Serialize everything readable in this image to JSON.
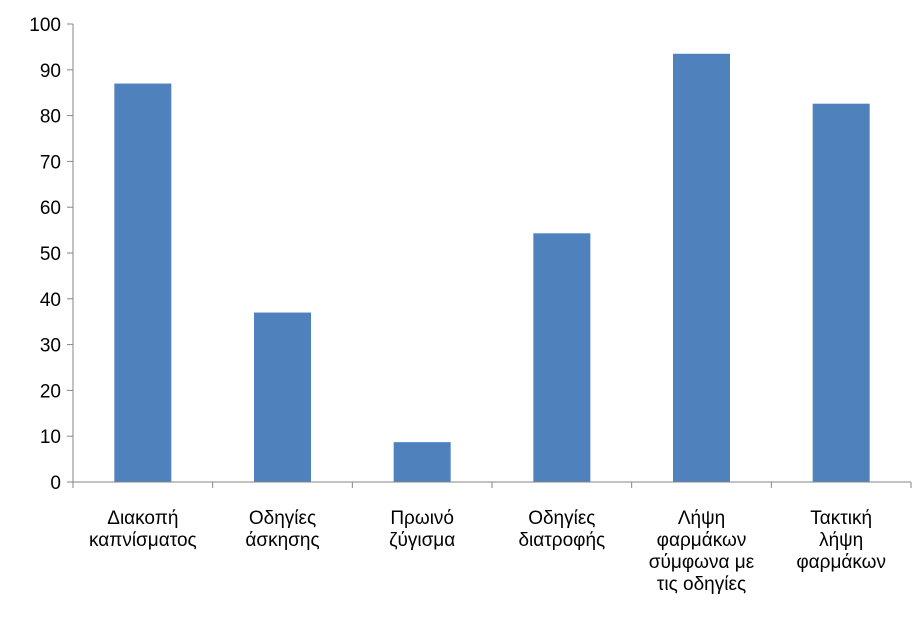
{
  "chart_data": {
    "type": "bar",
    "categories": [
      [
        "Διακοπή",
        "καπνίσματος"
      ],
      [
        "Οδηγίες",
        "άσκησης"
      ],
      [
        "Πρωινό",
        "ζύγισμα"
      ],
      [
        "Οδηγίες",
        "διατροφής"
      ],
      [
        "Λήψη",
        "φαρμάκων",
        "σύμφωνα με",
        "τις οδηγίες"
      ],
      [
        "Τακτική",
        "λήψη",
        "φαρμάκων"
      ]
    ],
    "values": [
      87,
      37,
      8.7,
      54.3,
      93.5,
      82.6
    ],
    "ylim": [
      0,
      100
    ],
    "yticks": [
      "0",
      "10",
      "20",
      "30",
      "40",
      "50",
      "60",
      "70",
      "80",
      "90",
      "100"
    ],
    "title": "",
    "xlabel": "",
    "ylabel": "",
    "grid": false,
    "legend": "none",
    "colors": {
      "bar": "#4f81bd",
      "axis": "#868686"
    }
  }
}
